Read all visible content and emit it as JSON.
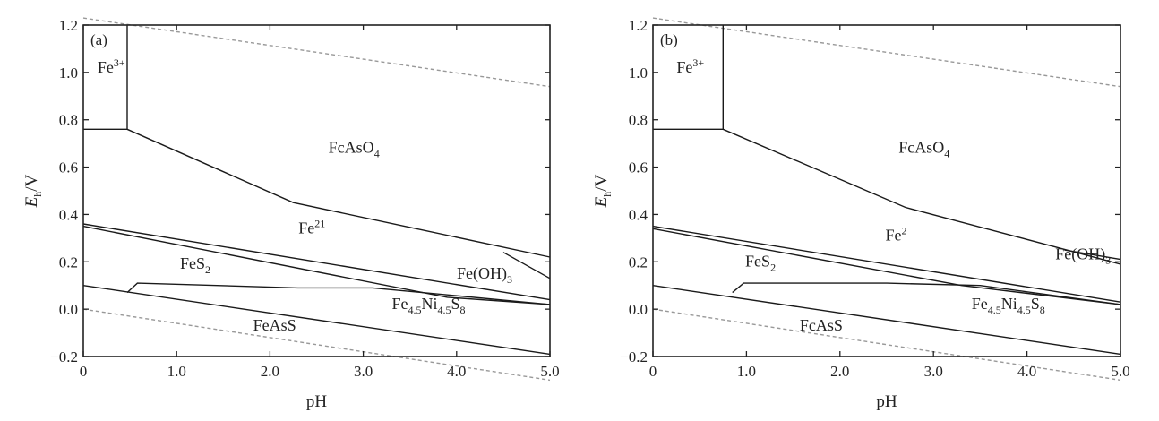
{
  "chart_data": [
    {
      "type": "diagram",
      "panel_label": "(a)",
      "xlabel": "pH",
      "ylabel": {
        "main": "E",
        "sub": "h",
        "unit": "/V"
      },
      "xlim": [
        0,
        5.0
      ],
      "ylim": [
        -0.2,
        1.2
      ],
      "x_ticks": [
        0,
        1.0,
        2.0,
        3.0,
        4.0,
        5.0
      ],
      "x_tick_labels": [
        "0",
        "1.0",
        "2.0",
        "3.0",
        "4.0",
        "5.0"
      ],
      "y_ticks": [
        -0.2,
        0.0,
        0.2,
        0.4,
        0.6,
        0.8,
        1.0,
        1.2
      ],
      "y_tick_labels": [
        "−0.2",
        "0.0",
        "0.2",
        "0.4",
        "0.6",
        "0.8",
        "1.0",
        "1.2"
      ],
      "regions": [
        {
          "parts": [
            {
              "t": "Fe"
            },
            {
              "t": "3+",
              "pos": "sup"
            }
          ],
          "x": 0.3,
          "y": 1.0
        },
        {
          "parts": [
            {
              "t": "FcAsO"
            },
            {
              "t": "4",
              "pos": "sub"
            }
          ],
          "x": 2.9,
          "y": 0.66
        },
        {
          "parts": [
            {
              "t": "Fe"
            },
            {
              "t": "21",
              "pos": "sup"
            }
          ],
          "x": 2.45,
          "y": 0.32
        },
        {
          "parts": [
            {
              "t": "FeS"
            },
            {
              "t": "2",
              "pos": "sub"
            }
          ],
          "x": 1.2,
          "y": 0.17
        },
        {
          "parts": [
            {
              "t": "Fe(OH)"
            },
            {
              "t": "3",
              "pos": "sub"
            }
          ],
          "x": 4.3,
          "y": 0.13
        },
        {
          "parts": [
            {
              "t": "Fe"
            },
            {
              "t": "4.5",
              "pos": "sub"
            },
            {
              "t": "Ni"
            },
            {
              "t": "4.5",
              "pos": "sub"
            },
            {
              "t": "S"
            },
            {
              "t": "8",
              "pos": "sub"
            }
          ],
          "x": 3.7,
          "y": 0.0
        },
        {
          "parts": [
            {
              "t": "FeAsS"
            }
          ],
          "x": 2.05,
          "y": -0.09
        }
      ],
      "boundaries": [
        [
          [
            0.47,
            1.2
          ],
          [
            0.47,
            0.76
          ],
          [
            0,
            0.76
          ]
        ],
        [
          [
            0.47,
            0.76
          ],
          [
            2.25,
            0.45
          ],
          [
            5.0,
            0.22
          ]
        ],
        [
          [
            4.5,
            0.24
          ],
          [
            5.0,
            0.13
          ]
        ],
        [
          [
            0,
            0.36
          ],
          [
            5.0,
            0.04
          ]
        ],
        [
          [
            0,
            0.35
          ],
          [
            3.9,
            0.05
          ],
          [
            5.0,
            0.02
          ]
        ],
        [
          [
            0.47,
            0.07
          ],
          [
            0.58,
            0.11
          ],
          [
            2.3,
            0.09
          ],
          [
            3.1,
            0.09
          ],
          [
            5.0,
            0.02
          ]
        ],
        [
          [
            0,
            0.1
          ],
          [
            5.0,
            -0.19
          ]
        ]
      ],
      "water_lines": [
        [
          [
            0,
            1.23
          ],
          [
            5.0,
            0.94
          ]
        ],
        [
          [
            0,
            0.0
          ],
          [
            5.0,
            -0.3
          ]
        ]
      ]
    },
    {
      "type": "diagram",
      "panel_label": "(b)",
      "xlabel": "pH",
      "ylabel": {
        "main": "E",
        "sub": "h",
        "unit": "/V"
      },
      "xlim": [
        0,
        5.0
      ],
      "ylim": [
        -0.2,
        1.2
      ],
      "x_ticks": [
        0,
        1.0,
        2.0,
        3.0,
        4.0,
        5.0
      ],
      "x_tick_labels": [
        "0",
        "1.0",
        "2.0",
        "3.0",
        "4.0",
        "5.0"
      ],
      "y_ticks": [
        -0.2,
        0.0,
        0.2,
        0.4,
        0.6,
        0.8,
        1.0,
        1.2
      ],
      "y_tick_labels": [
        "−0.2",
        "0.0",
        "0.2",
        "0.4",
        "0.6",
        "0.8",
        "1.0",
        "1.2"
      ],
      "regions": [
        {
          "parts": [
            {
              "t": "Fe"
            },
            {
              "t": "3+",
              "pos": "sup"
            }
          ],
          "x": 0.4,
          "y": 1.0
        },
        {
          "parts": [
            {
              "t": "FcAsO"
            },
            {
              "t": "4",
              "pos": "sub"
            }
          ],
          "x": 2.9,
          "y": 0.66
        },
        {
          "parts": [
            {
              "t": "Fe"
            },
            {
              "t": "2",
              "pos": "sup"
            }
          ],
          "x": 2.6,
          "y": 0.29
        },
        {
          "parts": [
            {
              "t": "FeS"
            },
            {
              "t": "2",
              "pos": "sub"
            }
          ],
          "x": 1.15,
          "y": 0.18
        },
        {
          "parts": [
            {
              "t": "Fe(OH)"
            },
            {
              "t": "3",
              "pos": "sub"
            }
          ],
          "x": 4.6,
          "y": 0.21
        },
        {
          "parts": [
            {
              "t": "Fe"
            },
            {
              "t": "4.5",
              "pos": "sub"
            },
            {
              "t": "Ni"
            },
            {
              "t": "4.5",
              "pos": "sub"
            },
            {
              "t": "S"
            },
            {
              "t": "8",
              "pos": "sub"
            }
          ],
          "x": 3.8,
          "y": 0.0
        },
        {
          "parts": [
            {
              "t": "FcAsS"
            }
          ],
          "x": 1.8,
          "y": -0.09
        }
      ],
      "boundaries": [
        [
          [
            0.75,
            1.2
          ],
          [
            0.75,
            0.76
          ],
          [
            0,
            0.76
          ]
        ],
        [
          [
            0.75,
            0.76
          ],
          [
            2.7,
            0.43
          ],
          [
            5.0,
            0.19
          ]
        ],
        [
          [
            4.4,
            0.25
          ],
          [
            5.0,
            0.21
          ]
        ],
        [
          [
            0,
            0.35
          ],
          [
            5.0,
            0.03
          ]
        ],
        [
          [
            0,
            0.34
          ],
          [
            3.3,
            0.1
          ],
          [
            5.0,
            0.02
          ]
        ],
        [
          [
            0.85,
            0.07
          ],
          [
            0.97,
            0.11
          ],
          [
            2.5,
            0.11
          ],
          [
            3.5,
            0.1
          ],
          [
            5.0,
            0.02
          ]
        ],
        [
          [
            0,
            0.1
          ],
          [
            5.0,
            -0.19
          ]
        ]
      ],
      "water_lines": [
        [
          [
            0,
            1.23
          ],
          [
            5.0,
            0.94
          ]
        ],
        [
          [
            0,
            0.0
          ],
          [
            5.0,
            -0.3
          ]
        ]
      ]
    }
  ]
}
